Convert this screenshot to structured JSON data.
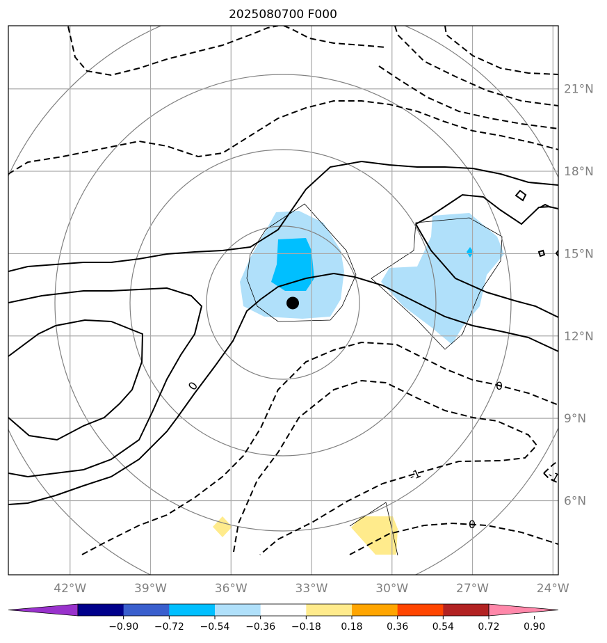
{
  "title": "2025080700 F000",
  "map": {
    "lon_range": [
      -44.3,
      -23.8
    ],
    "lat_range": [
      3.3,
      23.3
    ],
    "lon_ticks": [
      "42°W",
      "39°W",
      "36°W",
      "33°W",
      "30°W",
      "27°W",
      "24°W"
    ],
    "lat_ticks": [
      "6°N",
      "9°N",
      "12°N",
      "15°N",
      "18°N",
      "21°N"
    ],
    "grid": true,
    "center_marker": {
      "lon": -33.7,
      "lat": 13.2
    },
    "range_rings_visible": true
  },
  "contour_labels": [
    "0",
    "0",
    "0",
    "-1",
    "-1"
  ],
  "colorbar": {
    "ticks": [
      "−0.90",
      "−0.72",
      "−0.54",
      "−0.36",
      "−0.18",
      "0.18",
      "0.36",
      "0.54",
      "0.72",
      "0.90"
    ],
    "colors": [
      "#9932cc",
      "#00008b",
      "#3a5fcd",
      "#00bfff",
      "#b0e0fa",
      "#ffffff",
      "#ffeb8c",
      "#ffa500",
      "#ff4500",
      "#b22222",
      "#ff88aa"
    ]
  }
}
